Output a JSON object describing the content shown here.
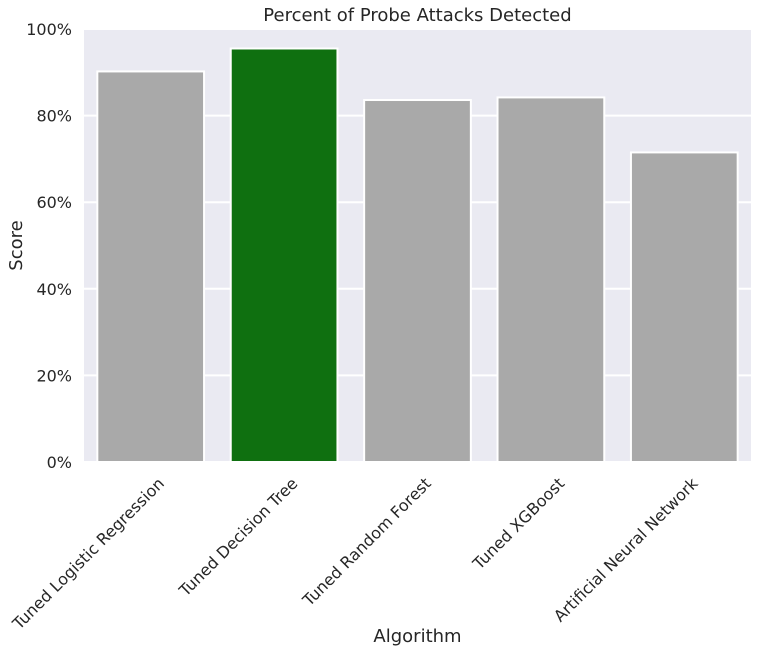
{
  "chart_data": {
    "type": "bar",
    "title": "Percent of Probe Attacks Detected",
    "xlabel": "Algorithm",
    "ylabel": "Score",
    "categories": [
      "Tuned Logistic Regression",
      "Tuned Decision Tree",
      "Tuned Random Forest",
      "Tuned XGBoost",
      "Artificial Neural Network"
    ],
    "values": [
      90.2,
      95.5,
      83.6,
      84.2,
      71.5
    ],
    "ylim": [
      0,
      100
    ],
    "yticks": [
      0,
      20,
      40,
      60,
      80,
      100
    ],
    "ytick_labels": [
      "0%",
      "20%",
      "40%",
      "60%",
      "80%",
      "100%"
    ],
    "grid": true,
    "highlight_index": 1,
    "colors": {
      "bar": "#a9a9a9",
      "highlight": "#0f7010",
      "background": "#eaeaf2",
      "grid": "#ffffff",
      "text": "#262626"
    }
  }
}
